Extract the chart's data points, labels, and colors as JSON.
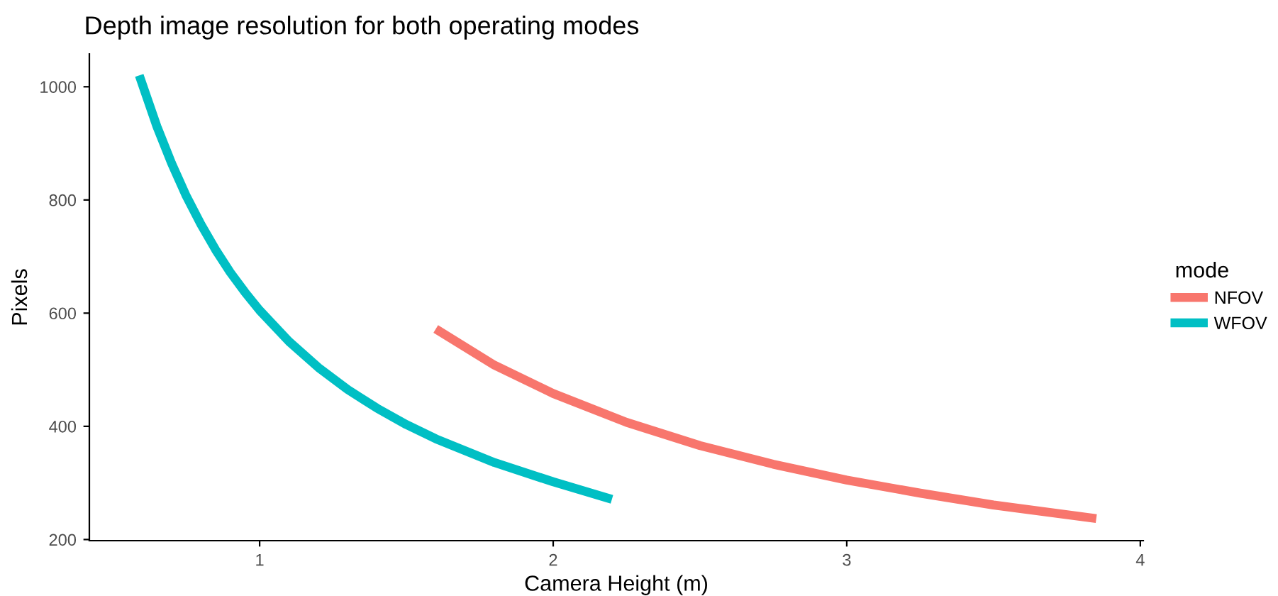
{
  "chart_data": {
    "type": "line",
    "title": "Depth image resolution for both operating modes",
    "xlabel": "Camera Height (m)",
    "ylabel": "Pixels",
    "legend_title": "mode",
    "legend": "right",
    "grid": false,
    "marker": "none",
    "line_style": "solid",
    "xlim": [
      0.42,
      4.01
    ],
    "ylim": [
      198,
      1058
    ],
    "xticks": [
      1,
      2,
      3,
      4
    ],
    "yticks": [
      200,
      400,
      600,
      800,
      1000
    ],
    "series": [
      {
        "name": "NFOV",
        "color": "#f8766d",
        "x": [
          1.6,
          1.8,
          2.0,
          2.25,
          2.5,
          2.75,
          3.0,
          3.25,
          3.5,
          3.85
        ],
        "values": [
          572,
          508,
          458,
          407,
          366,
          333,
          305,
          282,
          261,
          237
        ]
      },
      {
        "name": "WFOV",
        "color": "#00bfc4",
        "x": [
          0.59,
          0.65,
          0.7,
          0.75,
          0.8,
          0.85,
          0.9,
          0.95,
          1.0,
          1.1,
          1.2,
          1.3,
          1.4,
          1.5,
          1.6,
          1.8,
          2.0,
          2.2
        ],
        "values": [
          1020,
          930,
          865,
          807,
          757,
          712,
          672,
          637,
          605,
          550,
          504,
          465,
          432,
          403,
          378,
          336,
          302,
          271
        ]
      }
    ]
  }
}
